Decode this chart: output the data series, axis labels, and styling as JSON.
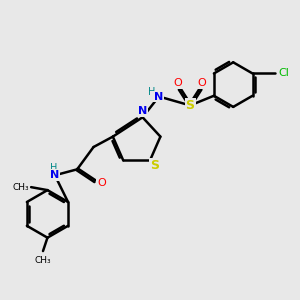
{
  "background_color": "#e8e8e8",
  "bond_color": "#000000",
  "atom_colors": {
    "N": "#0000ee",
    "S": "#cccc00",
    "O": "#ff0000",
    "Cl": "#00bb00",
    "H": "#008888",
    "C": "#000000"
  },
  "bond_width": 1.8,
  "figsize": [
    3.0,
    3.0
  ],
  "dpi": 100
}
